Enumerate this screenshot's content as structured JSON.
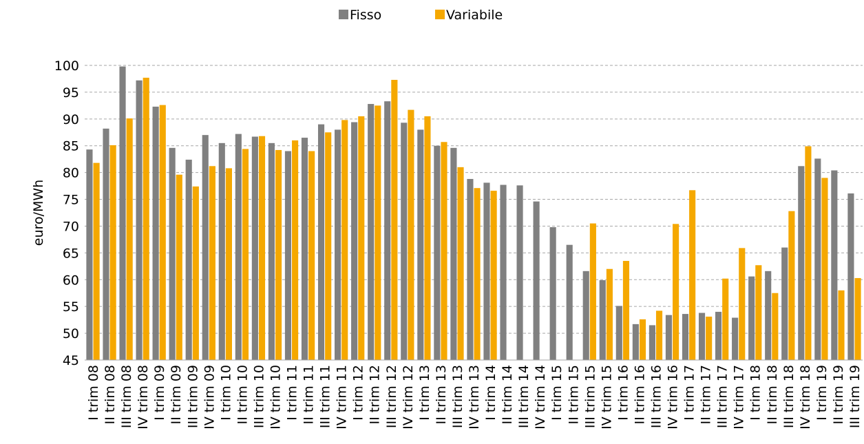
{
  "chart_data": {
    "type": "bar",
    "y_label": "euro/MWh",
    "categories": [
      "I trim 08",
      "II trim 08",
      "III trim 08",
      "IV trim 08",
      "I trim 09",
      "II trim 09",
      "III trim 09",
      "IV trim 09",
      "I trim 10",
      "II trim 10",
      "III trim 10",
      "IV trim 10",
      "I trim 11",
      "II trim 11",
      "III trim 11",
      "IV trim 11",
      "I trim 12",
      "II trim 12",
      "III trim 12",
      "IV trim 12",
      "I trim 13",
      "II trim 13",
      "III trim 13",
      "IV trim 13",
      "I trim 14",
      "II trim 14",
      "III trim 14",
      "IV trim 14",
      "I trim 15",
      "II trim 15",
      "III trim 15",
      "IV trim 15",
      "I trim 16",
      "II trim 16",
      "III trim 16",
      "IV trim 16",
      "I trim 17",
      "II trim 17",
      "III trim 17",
      "IV trim 17",
      "I trim 18",
      "II trim 18",
      "III trim 18",
      "IV trim 18",
      "I trim 19",
      "II trim 19",
      "III trim 19"
    ],
    "series": [
      {
        "name": "Fisso",
        "color": "#808080",
        "values": [
          84.3,
          88.2,
          99.8,
          97.2,
          92.3,
          84.6,
          82.4,
          87.0,
          85.5,
          87.2,
          86.7,
          85.5,
          84.0,
          86.5,
          89.0,
          88.0,
          89.4,
          92.8,
          93.3,
          89.3,
          88.0,
          85.0,
          84.6,
          78.8,
          78.1,
          77.7,
          77.6,
          74.6,
          69.8,
          66.5,
          61.6,
          59.9,
          55.1,
          51.7,
          51.5,
          53.4,
          53.6,
          53.8,
          54.0,
          52.9,
          60.6,
          61.6,
          66.0,
          81.2,
          82.6,
          80.4,
          76.1
        ]
      },
      {
        "name": "Variabile",
        "color": "#f5a800",
        "values": [
          81.8,
          85.1,
          90.1,
          97.7,
          92.6,
          79.6,
          77.4,
          81.2,
          80.8,
          84.4,
          86.8,
          84.2,
          86.0,
          84.0,
          87.5,
          89.8,
          90.5,
          92.5,
          97.3,
          91.7,
          90.5,
          85.7,
          81.0,
          77.1,
          76.6,
          null,
          null,
          null,
          null,
          null,
          70.5,
          62.0,
          63.5,
          52.6,
          54.2,
          70.4,
          76.7,
          53.1,
          60.2,
          65.9,
          62.7,
          57.5,
          72.8,
          84.9,
          79.0,
          58.0,
          60.3
        ]
      }
    ],
    "ylim": [
      45,
      100
    ],
    "yticks": [
      45,
      50,
      55,
      60,
      65,
      70,
      75,
      80,
      85,
      90,
      95,
      100
    ],
    "grid": true,
    "legend": "top"
  }
}
